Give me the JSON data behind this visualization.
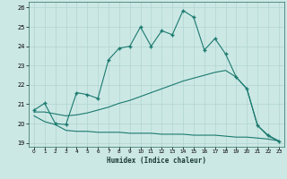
{
  "xlabel": "Humidex (Indice chaleur)",
  "ylabel": "",
  "bg_color": "#cce8e5",
  "grid_color": "#b0d5d0",
  "line_color": "#1a7a6e",
  "xlim": [
    -0.5,
    23.5
  ],
  "ylim": [
    18.8,
    26.3
  ],
  "xticks": [
    0,
    1,
    2,
    3,
    4,
    5,
    6,
    7,
    8,
    9,
    10,
    11,
    12,
    13,
    14,
    15,
    16,
    17,
    18,
    19,
    20,
    21,
    22,
    23
  ],
  "yticks": [
    19,
    20,
    21,
    22,
    23,
    24,
    25,
    26
  ],
  "main_line_x": [
    0,
    1,
    2,
    3,
    4,
    5,
    6,
    7,
    8,
    9,
    10,
    11,
    12,
    13,
    14,
    15,
    16,
    17,
    18,
    19,
    20,
    21,
    22,
    23
  ],
  "main_line_y": [
    20.7,
    21.05,
    20.0,
    19.95,
    21.6,
    21.5,
    21.3,
    23.3,
    23.9,
    24.0,
    25.0,
    24.0,
    24.8,
    24.6,
    25.85,
    25.5,
    23.8,
    24.4,
    23.6,
    22.4,
    21.8,
    19.9,
    19.4,
    19.1
  ],
  "upper_line_x": [
    0,
    1,
    2,
    3,
    4,
    5,
    6,
    7,
    8,
    9,
    10,
    11,
    12,
    13,
    14,
    15,
    16,
    17,
    18,
    19,
    20,
    21,
    22,
    23
  ],
  "upper_line_y": [
    20.6,
    20.6,
    20.5,
    20.4,
    20.45,
    20.55,
    20.7,
    20.85,
    21.05,
    21.2,
    21.4,
    21.6,
    21.8,
    22.0,
    22.2,
    22.35,
    22.5,
    22.65,
    22.75,
    22.4,
    21.8,
    19.9,
    19.35,
    19.1
  ],
  "lower_line_x": [
    0,
    1,
    2,
    3,
    4,
    5,
    6,
    7,
    8,
    9,
    10,
    11,
    12,
    13,
    14,
    15,
    16,
    17,
    18,
    19,
    20,
    21,
    22,
    23
  ],
  "lower_line_y": [
    20.4,
    20.1,
    19.95,
    19.65,
    19.6,
    19.6,
    19.55,
    19.55,
    19.55,
    19.5,
    19.5,
    19.5,
    19.45,
    19.45,
    19.45,
    19.4,
    19.4,
    19.4,
    19.35,
    19.3,
    19.3,
    19.25,
    19.2,
    19.1
  ]
}
